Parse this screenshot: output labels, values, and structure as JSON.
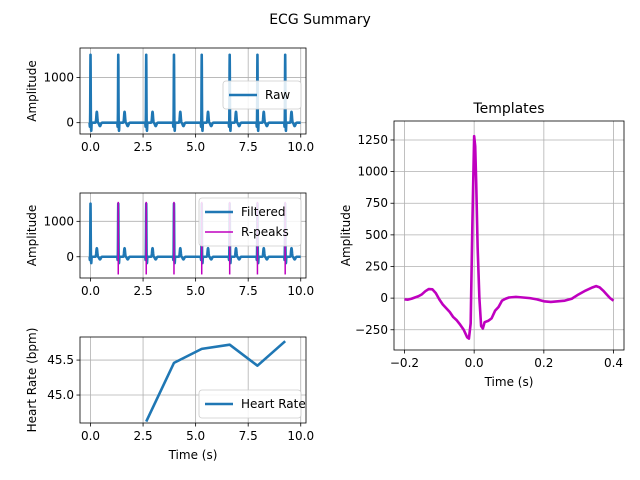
{
  "figure": {
    "title": "ECG Summary"
  },
  "chart_data": [
    {
      "id": "raw",
      "type": "line",
      "title": "",
      "xlabel": "",
      "ylabel": "Amplitude",
      "xlim": [
        -0.5,
        10.25
      ],
      "ylim": [
        -250,
        1650
      ],
      "xticks": [
        0,
        2.5,
        5,
        7.5,
        10
      ],
      "xtick_labels": [
        "0.0",
        "2.5",
        "5.0",
        "7.5",
        "10.0"
      ],
      "yticks": [
        0,
        1000
      ],
      "ytick_labels": [
        "0",
        "1000"
      ],
      "grid": true,
      "legend": {
        "placement": "center-right",
        "entries": [
          "Raw"
        ]
      },
      "beat_times": [
        0.0,
        1.32,
        2.65,
        3.97,
        5.29,
        6.62,
        7.94,
        9.26
      ],
      "r_amplitude": 1500,
      "baseline": 0,
      "series": [
        {
          "name": "Raw",
          "color": "#1f77b4",
          "kind": "ecg"
        }
      ]
    },
    {
      "id": "filtered",
      "type": "line",
      "title": "",
      "xlabel": "",
      "ylabel": "Amplitude",
      "xlim": [
        -0.5,
        10.25
      ],
      "ylim": [
        -600,
        1800
      ],
      "xticks": [
        0,
        2.5,
        5,
        7.5,
        10
      ],
      "xtick_labels": [
        "0.0",
        "2.5",
        "5.0",
        "7.5",
        "10.0"
      ],
      "yticks": [
        0,
        1000
      ],
      "ytick_labels": [
        "0",
        "1000"
      ],
      "grid": true,
      "legend": {
        "placement": "upper-right",
        "entries": [
          "Filtered",
          "R-peaks"
        ]
      },
      "beat_times": [
        0.0,
        1.32,
        2.65,
        3.97,
        5.29,
        6.62,
        7.94,
        9.26
      ],
      "r_amplitude": 1500,
      "baseline": 0,
      "r_peaks": [
        1.32,
        2.65,
        3.97,
        5.29,
        6.62,
        7.94,
        9.26
      ],
      "r_peak_range": [
        -500,
        1550
      ],
      "series": [
        {
          "name": "Filtered",
          "color": "#1f77b4",
          "kind": "ecg"
        },
        {
          "name": "R-peaks",
          "color": "#bf00bf",
          "kind": "vlines"
        }
      ]
    },
    {
      "id": "heart-rate",
      "type": "line",
      "title": "",
      "xlabel": "Time (s)",
      "ylabel": "Heart Rate (bpm)",
      "xlim": [
        -0.5,
        10.25
      ],
      "ylim": [
        44.6,
        45.83
      ],
      "xticks": [
        0,
        2.5,
        5,
        7.5,
        10
      ],
      "xtick_labels": [
        "0.0",
        "2.5",
        "5.0",
        "7.5",
        "10.0"
      ],
      "yticks": [
        45.0,
        45.5
      ],
      "ytick_labels": [
        "45.0",
        "45.5"
      ],
      "grid": true,
      "legend": {
        "placement": "lower-right",
        "entries": [
          "Heart Rate"
        ]
      },
      "series": [
        {
          "name": "Heart Rate",
          "color": "#1f77b4",
          "x": [
            2.65,
            3.97,
            5.29,
            6.62,
            7.94,
            9.26
          ],
          "y": [
            44.62,
            45.46,
            45.66,
            45.72,
            45.42,
            45.77
          ]
        }
      ]
    },
    {
      "id": "templates",
      "type": "line",
      "title": "Templates",
      "xlabel": "Time (s)",
      "ylabel": "Amplitude",
      "xlim": [
        -0.23,
        0.43
      ],
      "ylim": [
        -410,
        1400
      ],
      "xticks": [
        -0.2,
        0.0,
        0.2,
        0.4
      ],
      "xtick_labels": [
        "−0.2",
        "0.0",
        "0.2",
        "0.4"
      ],
      "yticks": [
        -250,
        0,
        250,
        500,
        750,
        1000,
        1250
      ],
      "ytick_labels": [
        "−250",
        "0",
        "250",
        "500",
        "750",
        "1000",
        "1250"
      ],
      "grid": true,
      "legend": null,
      "series": [
        {
          "name": "",
          "color": "#bf00bf",
          "x": [
            -0.2,
            -0.19,
            -0.18,
            -0.17,
            -0.16,
            -0.15,
            -0.14,
            -0.13,
            -0.12,
            -0.11,
            -0.1,
            -0.09,
            -0.08,
            -0.07,
            -0.06,
            -0.05,
            -0.04,
            -0.03,
            -0.02,
            -0.015,
            -0.01,
            -0.005,
            0.0,
            0.003,
            0.006,
            0.01,
            0.015,
            0.02,
            0.025,
            0.03,
            0.04,
            0.05,
            0.06,
            0.07,
            0.08,
            0.09,
            0.1,
            0.12,
            0.14,
            0.16,
            0.18,
            0.2,
            0.22,
            0.24,
            0.26,
            0.28,
            0.3,
            0.32,
            0.34,
            0.35,
            0.36,
            0.37,
            0.38,
            0.39,
            0.4
          ],
          "y": [
            -10,
            -12,
            -5,
            5,
            15,
            30,
            55,
            72,
            70,
            40,
            -10,
            -50,
            -80,
            -110,
            -150,
            -175,
            -210,
            -250,
            -310,
            -320,
            -200,
            600,
            1280,
            1200,
            900,
            400,
            0,
            -220,
            -240,
            -190,
            -180,
            -160,
            -100,
            -70,
            -20,
            -5,
            5,
            10,
            5,
            0,
            -10,
            -25,
            -30,
            -25,
            -20,
            -5,
            30,
            60,
            85,
            95,
            85,
            60,
            30,
            0,
            -20
          ]
        }
      ]
    }
  ]
}
